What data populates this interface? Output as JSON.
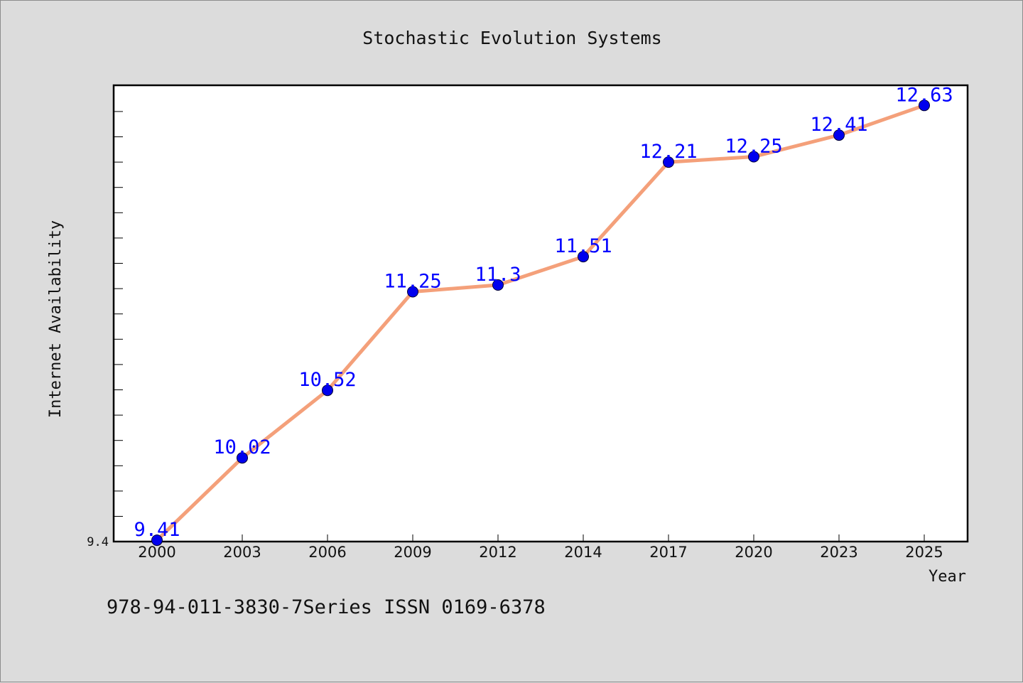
{
  "chart_data": {
    "type": "line",
    "title": "Stochastic Evolution Systems",
    "xlabel": "Year",
    "ylabel": "Internet Availability",
    "categories": [
      "2000",
      "2003",
      "2006",
      "2009",
      "2012",
      "2014",
      "2017",
      "2020",
      "2023",
      "2025"
    ],
    "series": [
      {
        "values": [
          9.41,
          10.02,
          10.52,
          11.25,
          11.3,
          11.51,
          12.21,
          12.25,
          12.41,
          12.63
        ]
      }
    ],
    "data_labels": [
      "9.41",
      "10.02",
      "10.52",
      "11.25",
      "11.3",
      "11.51",
      "12.21",
      "12.25",
      "12.41",
      "12.63"
    ],
    "y_tick_label": "9.4",
    "ylim": [
      9.4,
      12.8
    ],
    "grid": false,
    "legend": "none",
    "colors": {
      "line": "#f4a07a",
      "marker": "#0000ee",
      "data_label": "#0000ff",
      "background": "#dcdcdc",
      "plot_background": "#ffffff"
    }
  },
  "footer": {
    "text": "978-94-011-3830-7Series ISSN 0169-6378"
  }
}
